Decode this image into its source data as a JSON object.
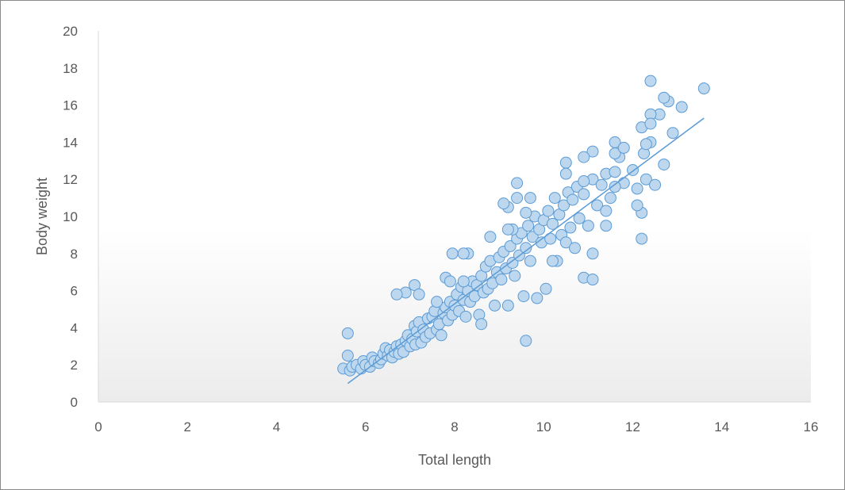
{
  "chart_data": {
    "type": "scatter",
    "title": "",
    "xlabel": "Total length",
    "ylabel": "Body weight",
    "xlim": [
      0,
      16
    ],
    "ylim": [
      0,
      20
    ],
    "xticks": [
      "0",
      "2",
      "4",
      "6",
      "8",
      "10",
      "12",
      "14",
      "16"
    ],
    "yticks": [
      "0",
      "2",
      "4",
      "6",
      "8",
      "10",
      "12",
      "14",
      "16",
      "18",
      "20"
    ],
    "grid": false,
    "legend": "none",
    "colors": {
      "marker_fill": "#bdd7ee",
      "marker_stroke": "#5b9bd5",
      "trendline": "#5b9bd5",
      "axis": "#d9d9d9",
      "text": "#595959"
    },
    "trendline": {
      "type": "linear",
      "x": [
        5.6,
        13.6
      ],
      "y": [
        1.0,
        15.3
      ]
    },
    "series": [
      {
        "points": [
          [
            5.5,
            1.8
          ],
          [
            5.6,
            2.5
          ],
          [
            5.6,
            3.7
          ],
          [
            5.65,
            1.7
          ],
          [
            5.7,
            1.9
          ],
          [
            5.8,
            2.0
          ],
          [
            5.9,
            1.8
          ],
          [
            5.95,
            2.2
          ],
          [
            6.0,
            2.0
          ],
          [
            6.1,
            1.9
          ],
          [
            6.15,
            2.4
          ],
          [
            6.2,
            2.2
          ],
          [
            6.3,
            2.1
          ],
          [
            6.35,
            2.3
          ],
          [
            6.4,
            2.6
          ],
          [
            6.45,
            2.9
          ],
          [
            6.5,
            2.5
          ],
          [
            6.55,
            2.8
          ],
          [
            6.6,
            2.4
          ],
          [
            6.65,
            2.7
          ],
          [
            6.7,
            3.0
          ],
          [
            6.75,
            2.6
          ],
          [
            6.8,
            3.1
          ],
          [
            6.85,
            2.7
          ],
          [
            6.9,
            3.3
          ],
          [
            6.95,
            3.6
          ],
          [
            7.0,
            3.0
          ],
          [
            7.05,
            3.4
          ],
          [
            7.1,
            4.1
          ],
          [
            7.12,
            3.1
          ],
          [
            7.15,
            3.8
          ],
          [
            7.2,
            4.3
          ],
          [
            7.25,
            3.2
          ],
          [
            7.3,
            3.9
          ],
          [
            7.35,
            3.5
          ],
          [
            7.4,
            4.5
          ],
          [
            7.45,
            3.7
          ],
          [
            7.5,
            4.6
          ],
          [
            7.55,
            4.9
          ],
          [
            7.6,
            3.9
          ],
          [
            7.65,
            4.2
          ],
          [
            7.7,
            3.6
          ],
          [
            7.75,
            4.8
          ],
          [
            7.8,
            5.1
          ],
          [
            7.85,
            4.4
          ],
          [
            7.9,
            5.4
          ],
          [
            7.95,
            4.7
          ],
          [
            8.0,
            5.2
          ],
          [
            8.05,
            5.8
          ],
          [
            8.1,
            4.9
          ],
          [
            8.15,
            6.2
          ],
          [
            8.2,
            5.5
          ],
          [
            8.25,
            4.6
          ],
          [
            8.3,
            6.0
          ],
          [
            8.35,
            5.4
          ],
          [
            8.4,
            6.5
          ],
          [
            8.45,
            5.7
          ],
          [
            8.5,
            6.3
          ],
          [
            8.55,
            4.7
          ],
          [
            8.6,
            6.8
          ],
          [
            8.65,
            5.9
          ],
          [
            8.7,
            7.3
          ],
          [
            8.75,
            6.1
          ],
          [
            8.8,
            7.6
          ],
          [
            8.85,
            6.4
          ],
          [
            8.9,
            5.2
          ],
          [
            8.95,
            7.0
          ],
          [
            9.0,
            7.8
          ],
          [
            9.05,
            6.6
          ],
          [
            9.1,
            8.1
          ],
          [
            9.15,
            7.2
          ],
          [
            9.2,
            5.2
          ],
          [
            9.25,
            8.4
          ],
          [
            9.3,
            7.5
          ],
          [
            9.35,
            6.8
          ],
          [
            9.4,
            8.8
          ],
          [
            9.45,
            7.9
          ],
          [
            9.5,
            9.1
          ],
          [
            9.55,
            5.7
          ],
          [
            9.6,
            8.3
          ],
          [
            9.65,
            9.5
          ],
          [
            9.7,
            7.6
          ],
          [
            9.75,
            8.9
          ],
          [
            9.8,
            10.0
          ],
          [
            9.85,
            5.6
          ],
          [
            9.9,
            9.3
          ],
          [
            9.95,
            8.6
          ],
          [
            10.0,
            9.8
          ],
          [
            10.05,
            6.1
          ],
          [
            10.1,
            10.3
          ],
          [
            10.15,
            8.8
          ],
          [
            10.2,
            9.6
          ],
          [
            10.25,
            11.0
          ],
          [
            10.3,
            7.6
          ],
          [
            10.35,
            10.1
          ],
          [
            10.4,
            9.0
          ],
          [
            10.45,
            10.6
          ],
          [
            10.5,
            8.6
          ],
          [
            10.55,
            11.3
          ],
          [
            10.6,
            9.4
          ],
          [
            10.65,
            10.9
          ],
          [
            10.7,
            8.3
          ],
          [
            10.75,
            11.6
          ],
          [
            10.8,
            9.9
          ],
          [
            10.9,
            11.2
          ],
          [
            11.0,
            9.5
          ],
          [
            11.1,
            12.0
          ],
          [
            11.2,
            10.6
          ],
          [
            11.3,
            11.7
          ],
          [
            11.4,
            12.3
          ],
          [
            11.5,
            11.0
          ],
          [
            11.6,
            12.4
          ],
          [
            11.7,
            13.2
          ],
          [
            11.8,
            11.8
          ],
          [
            12.0,
            12.5
          ],
          [
            12.1,
            11.5
          ],
          [
            12.2,
            10.2
          ],
          [
            12.25,
            13.4
          ],
          [
            12.3,
            12.0
          ],
          [
            12.4,
            14.0
          ],
          [
            12.5,
            11.7
          ],
          [
            12.6,
            15.5
          ],
          [
            12.7,
            12.8
          ],
          [
            12.8,
            16.2
          ],
          [
            12.9,
            14.5
          ],
          [
            13.1,
            15.9
          ],
          [
            13.6,
            16.9
          ],
          [
            12.4,
            17.3
          ],
          [
            12.7,
            16.4
          ],
          [
            12.4,
            15.5
          ],
          [
            12.2,
            14.8
          ],
          [
            12.4,
            15.0
          ],
          [
            12.3,
            13.9
          ],
          [
            11.6,
            14.0
          ],
          [
            11.6,
            13.4
          ],
          [
            11.8,
            13.7
          ],
          [
            11.1,
            13.5
          ],
          [
            10.9,
            13.2
          ],
          [
            10.5,
            12.9
          ],
          [
            10.5,
            12.3
          ],
          [
            10.9,
            11.9
          ],
          [
            11.6,
            11.6
          ],
          [
            11.4,
            10.3
          ],
          [
            11.4,
            9.5
          ],
          [
            12.1,
            10.6
          ],
          [
            12.2,
            8.8
          ],
          [
            11.1,
            8.0
          ],
          [
            10.9,
            6.7
          ],
          [
            11.1,
            6.6
          ],
          [
            9.4,
            11.8
          ],
          [
            9.4,
            11.0
          ],
          [
            9.2,
            10.5
          ],
          [
            9.1,
            10.7
          ],
          [
            9.3,
            9.3
          ],
          [
            9.6,
            10.2
          ],
          [
            9.7,
            11.0
          ],
          [
            9.6,
            3.3
          ],
          [
            8.8,
            8.9
          ],
          [
            8.3,
            8.0
          ],
          [
            8.2,
            8.0
          ],
          [
            7.95,
            8.0
          ],
          [
            7.8,
            6.7
          ],
          [
            7.9,
            6.5
          ],
          [
            7.6,
            5.4
          ],
          [
            7.1,
            6.3
          ],
          [
            6.9,
            5.9
          ],
          [
            6.7,
            5.8
          ],
          [
            7.2,
            5.8
          ],
          [
            8.2,
            6.5
          ],
          [
            8.6,
            4.2
          ],
          [
            9.2,
            9.3
          ],
          [
            10.2,
            7.6
          ]
        ]
      }
    ]
  }
}
